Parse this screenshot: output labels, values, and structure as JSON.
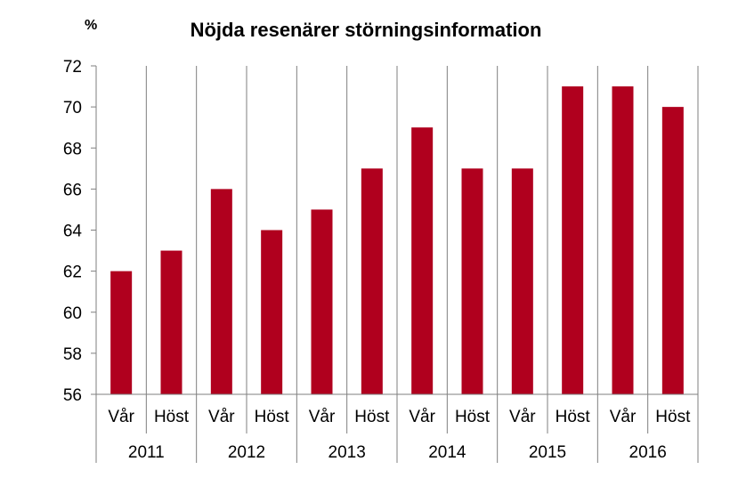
{
  "chart_data": {
    "type": "bar",
    "title": "Nöjda resenärer störningsinformation",
    "ylabel": "%",
    "xlabel": "",
    "ylim": [
      56,
      72
    ],
    "yticks": [
      56,
      58,
      60,
      62,
      64,
      66,
      68,
      70,
      72
    ],
    "grid": false,
    "legend": "none",
    "bar_color": "#b0001e",
    "groups": [
      "2011",
      "2012",
      "2013",
      "2014",
      "2015",
      "2016"
    ],
    "categories": [
      "Vår",
      "Höst",
      "Vår",
      "Höst",
      "Vår",
      "Höst",
      "Vår",
      "Höst",
      "Vår",
      "Höst",
      "Vår",
      "Höst"
    ],
    "values": [
      62,
      63,
      66,
      64,
      65,
      67,
      69,
      67,
      67,
      71,
      71,
      70
    ]
  }
}
